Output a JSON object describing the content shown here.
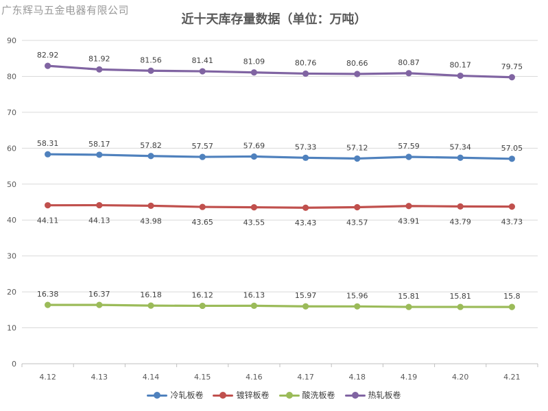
{
  "watermark": "广东辉马五金电器有限公司",
  "chart_data": {
    "type": "line",
    "title": "近十天库存量数据（单位：万吨）",
    "categories": [
      "4.12",
      "4.13",
      "4.14",
      "4.15",
      "4.16",
      "4.17",
      "4.18",
      "4.19",
      "4.20",
      "4.21"
    ],
    "ylim": [
      0,
      90
    ],
    "yticks": [
      0,
      10,
      20,
      30,
      40,
      50,
      60,
      70,
      80,
      90
    ],
    "grid": true,
    "legend_position": "bottom",
    "series": [
      {
        "name": "冷轧板卷",
        "color": "#4f81bd",
        "label_position": "above",
        "values": [
          58.31,
          58.17,
          57.82,
          57.57,
          57.69,
          57.33,
          57.12,
          57.59,
          57.34,
          57.05
        ]
      },
      {
        "name": "镀锌板卷",
        "color": "#c0504d",
        "label_position": "below",
        "values": [
          44.11,
          44.13,
          43.98,
          43.65,
          43.55,
          43.43,
          43.57,
          43.91,
          43.79,
          43.73
        ]
      },
      {
        "name": "酸洗板卷",
        "color": "#9bbb59",
        "label_position": "above",
        "values": [
          16.38,
          16.37,
          16.18,
          16.12,
          16.13,
          15.97,
          15.96,
          15.81,
          15.81,
          15.8
        ]
      },
      {
        "name": "热轧板卷",
        "color": "#8064a2",
        "label_position": "above",
        "values": [
          82.92,
          81.92,
          81.56,
          81.41,
          81.09,
          80.76,
          80.66,
          80.87,
          80.17,
          79.75
        ]
      }
    ]
  }
}
